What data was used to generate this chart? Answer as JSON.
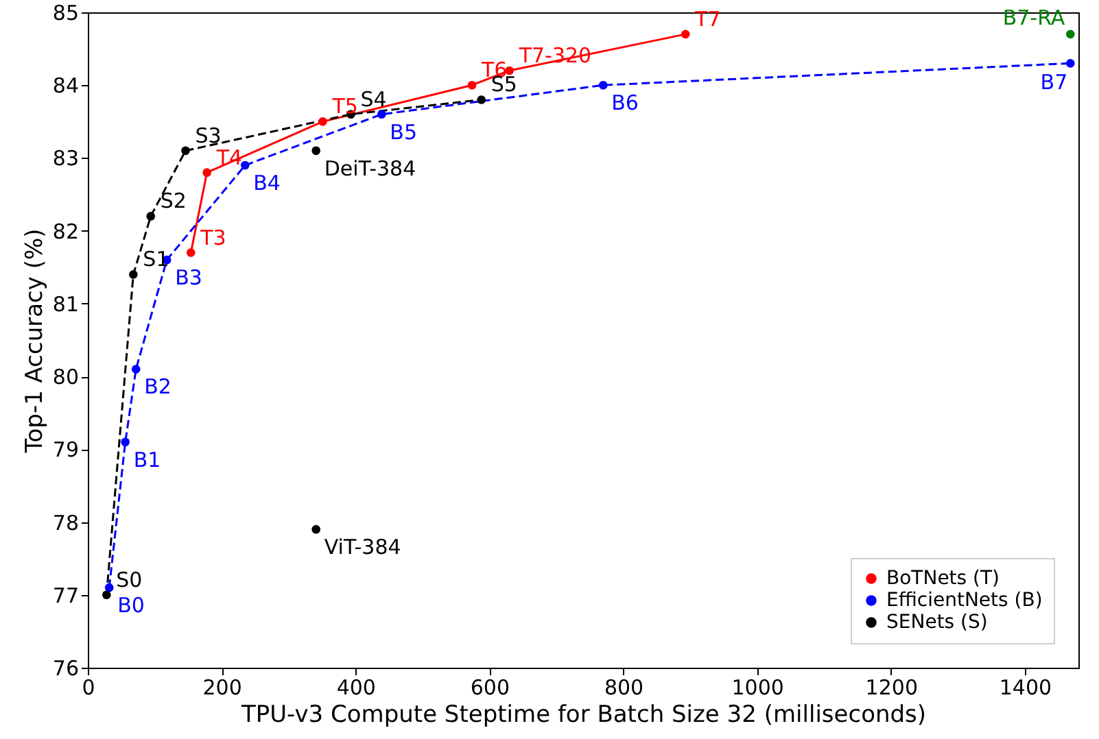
{
  "chart_data": {
    "type": "line",
    "xlabel": "TPU-v3 Compute Steptime for Batch Size 32 (milliseconds)",
    "ylabel": "Top-1 Accuracy (%)",
    "xlim": [
      0,
      1480
    ],
    "xticks": [
      0,
      200,
      400,
      600,
      800,
      1000,
      1200,
      1400
    ],
    "ylim": [
      76,
      85
    ],
    "yticks": [
      76,
      77,
      78,
      79,
      80,
      81,
      82,
      83,
      84,
      85
    ],
    "grid": false,
    "legend": "bottom right",
    "marker": "circle",
    "series": [
      {
        "name": "BoTNets (T)",
        "color": "#ff0000",
        "line_style": "solid",
        "x": [
          154,
          178,
          351,
          574,
          630,
          893
        ],
        "values": [
          81.7,
          82.8,
          83.5,
          84.0,
          84.2,
          84.7
        ],
        "value_labels": [
          "T3",
          "T4",
          "T5",
          "T6",
          "T7-320",
          "T7"
        ]
      },
      {
        "name": "EfficientNets (B)",
        "color": "#0000ff",
        "line_style": "dashed",
        "x": [
          32,
          56,
          72,
          118,
          235,
          439,
          770,
          1468
        ],
        "values": [
          77.1,
          79.1,
          80.1,
          81.6,
          82.9,
          83.6,
          84.0,
          84.3
        ],
        "value_labels": [
          "B0",
          "B1",
          "B2",
          "B3",
          "B4",
          "B5",
          "B6",
          "B7"
        ]
      },
      {
        "name": "SENets (S)",
        "color": "#000000",
        "line_style": "dashed",
        "x": [
          28,
          68,
          94,
          146,
          393,
          588
        ],
        "values": [
          77.0,
          81.4,
          82.2,
          83.1,
          83.6,
          83.8
        ],
        "value_labels": [
          "S0",
          "S1",
          "S2",
          "S3",
          "S4",
          "S5"
        ]
      },
      {
        "type": "scatter",
        "color": "#000000",
        "x": [
          341,
          341
        ],
        "values": [
          83.1,
          77.9
        ],
        "value_labels": [
          "DeiT-384",
          "ViT-384"
        ]
      },
      {
        "type": "scatter",
        "color": "#008000",
        "x": [
          1468
        ],
        "values": [
          84.7
        ],
        "value_labels": [
          "B7-RA"
        ]
      }
    ]
  }
}
